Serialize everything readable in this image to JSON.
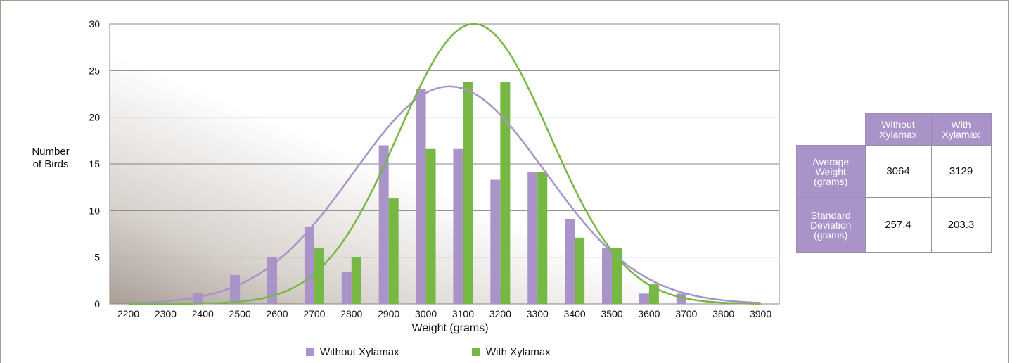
{
  "chart_data": {
    "type": "bar",
    "ylabel": "Number\nof Birds",
    "xlabel": "Weight (grams)",
    "categories": [
      "2200",
      "2300",
      "2400",
      "2500",
      "2600",
      "2700",
      "2800",
      "2900",
      "3000",
      "3100",
      "3200",
      "3300",
      "3400",
      "3500",
      "3600",
      "3700",
      "3800",
      "3900"
    ],
    "yticks": [
      "0",
      "5",
      "10",
      "15",
      "20",
      "25",
      "30"
    ],
    "ylim": [
      0,
      30
    ],
    "grid": true,
    "legend_position": "bottom",
    "series": [
      {
        "name": "Without Xylamax",
        "color": "#a993c9",
        "values": [
          0,
          0,
          1.2,
          3.1,
          5,
          8.3,
          3.4,
          17,
          23,
          16.6,
          13.3,
          14.1,
          9.1,
          6,
          1.1,
          1.1,
          0,
          0
        ],
        "curve": {
          "type": "normal",
          "mean": 3064,
          "sd": 257.4,
          "peak": 23.3
        }
      },
      {
        "name": "With Xylamax",
        "color": "#76b843",
        "values": [
          0,
          0,
          0,
          0,
          0,
          6,
          5,
          11.3,
          16.6,
          23.8,
          23.8,
          14.1,
          7.1,
          6,
          2.1,
          0,
          0,
          0
        ],
        "curve": {
          "type": "normal",
          "mean": 3129,
          "sd": 203.3,
          "peak": 30
        }
      }
    ]
  },
  "table": {
    "col_headers": [
      "Without\nXylamax",
      "With\nXylamax"
    ],
    "rows": [
      {
        "label": "Average\nWeight\n(grams)",
        "values": [
          "3064",
          "3129"
        ]
      },
      {
        "label": "Standard\nDeviation\n(grams)",
        "values": [
          "257.4",
          "203.3"
        ]
      }
    ]
  }
}
